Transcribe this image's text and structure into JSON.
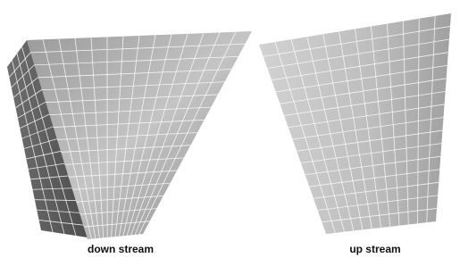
{
  "figures": [
    {
      "caption": "down stream"
    },
    {
      "caption": "up stream"
    }
  ]
}
